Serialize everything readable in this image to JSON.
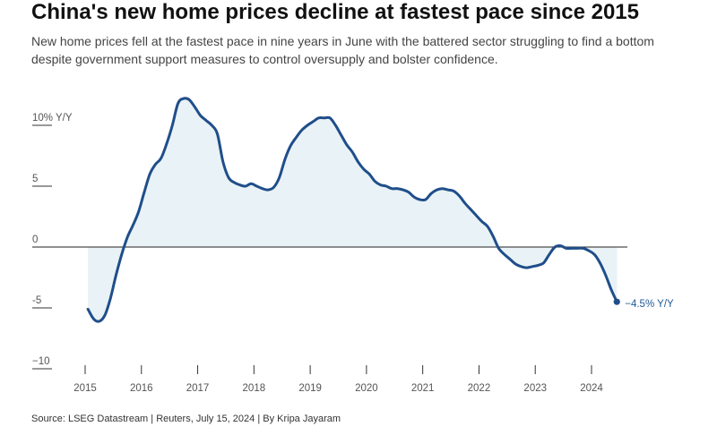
{
  "header": {
    "title": "China's new home prices decline at fastest pace since 2015",
    "subtitle": "New home prices fell at the fastest pace in nine years in June with the battered sector struggling to find a bottom despite government support measures to control oversupply and bolster confidence."
  },
  "footer": {
    "source": "Source: LSEG Datastream | Reuters, July 15, 2024 | By Kripa Jayaram"
  },
  "colors": {
    "line": "#1f4e8a",
    "area": "#e9f2f6",
    "axis": "#222222",
    "label": "#1f5a96"
  },
  "chart_data": {
    "type": "area",
    "ylim": [
      -10,
      12
    ],
    "xlim": [
      2015.0,
      2024.7
    ],
    "y_ticks": [
      {
        "value": 10,
        "label": "10% Y/Y"
      },
      {
        "value": 5,
        "label": "5"
      },
      {
        "value": 0,
        "label": "0"
      },
      {
        "value": -5,
        "label": "-5"
      },
      {
        "value": -10,
        "label": "−10"
      }
    ],
    "x_ticks": [
      {
        "value": 2015,
        "label": "2015"
      },
      {
        "value": 2016,
        "label": "2016"
      },
      {
        "value": 2017,
        "label": "2017"
      },
      {
        "value": 2018,
        "label": "2018"
      },
      {
        "value": 2019,
        "label": "2019"
      },
      {
        "value": 2020,
        "label": "2020"
      },
      {
        "value": 2021,
        "label": "2021"
      },
      {
        "value": 2022,
        "label": "2022"
      },
      {
        "value": 2023,
        "label": "2023"
      },
      {
        "value": 2024,
        "label": "2024"
      }
    ],
    "end_label": "−4.5% Y/Y",
    "series": [
      {
        "points": [
          [
            2015.05,
            -5.1
          ],
          [
            2015.15,
            -5.9
          ],
          [
            2015.25,
            -6.1
          ],
          [
            2015.35,
            -5.6
          ],
          [
            2015.45,
            -4.2
          ],
          [
            2015.55,
            -2.3
          ],
          [
            2015.65,
            -0.6
          ],
          [
            2015.75,
            0.8
          ],
          [
            2015.85,
            1.8
          ],
          [
            2015.95,
            2.9
          ],
          [
            2016.05,
            4.5
          ],
          [
            2016.15,
            6.0
          ],
          [
            2016.25,
            6.8
          ],
          [
            2016.35,
            7.3
          ],
          [
            2016.45,
            8.5
          ],
          [
            2016.55,
            10.0
          ],
          [
            2016.65,
            11.8
          ],
          [
            2016.75,
            12.2
          ],
          [
            2016.85,
            12.1
          ],
          [
            2016.95,
            11.5
          ],
          [
            2017.05,
            10.8
          ],
          [
            2017.15,
            10.4
          ],
          [
            2017.25,
            10.0
          ],
          [
            2017.35,
            9.3
          ],
          [
            2017.45,
            7.0
          ],
          [
            2017.55,
            5.7
          ],
          [
            2017.65,
            5.3
          ],
          [
            2017.75,
            5.1
          ],
          [
            2017.85,
            5.0
          ],
          [
            2017.95,
            5.2
          ],
          [
            2018.05,
            5.0
          ],
          [
            2018.15,
            4.8
          ],
          [
            2018.25,
            4.7
          ],
          [
            2018.35,
            4.9
          ],
          [
            2018.45,
            5.7
          ],
          [
            2018.55,
            7.2
          ],
          [
            2018.65,
            8.3
          ],
          [
            2018.75,
            9.0
          ],
          [
            2018.85,
            9.6
          ],
          [
            2018.95,
            10.0
          ],
          [
            2019.05,
            10.3
          ],
          [
            2019.15,
            10.6
          ],
          [
            2019.25,
            10.6
          ],
          [
            2019.35,
            10.6
          ],
          [
            2019.45,
            10.0
          ],
          [
            2019.55,
            9.2
          ],
          [
            2019.65,
            8.4
          ],
          [
            2019.75,
            7.8
          ],
          [
            2019.85,
            7.0
          ],
          [
            2019.95,
            6.4
          ],
          [
            2020.05,
            6.0
          ],
          [
            2020.15,
            5.4
          ],
          [
            2020.25,
            5.1
          ],
          [
            2020.35,
            5.0
          ],
          [
            2020.45,
            4.8
          ],
          [
            2020.55,
            4.8
          ],
          [
            2020.65,
            4.7
          ],
          [
            2020.75,
            4.5
          ],
          [
            2020.85,
            4.1
          ],
          [
            2020.95,
            3.9
          ],
          [
            2021.05,
            3.9
          ],
          [
            2021.15,
            4.4
          ],
          [
            2021.25,
            4.7
          ],
          [
            2021.35,
            4.8
          ],
          [
            2021.45,
            4.7
          ],
          [
            2021.55,
            4.6
          ],
          [
            2021.65,
            4.2
          ],
          [
            2021.75,
            3.6
          ],
          [
            2021.85,
            3.1
          ],
          [
            2021.95,
            2.6
          ],
          [
            2022.05,
            2.1
          ],
          [
            2022.15,
            1.7
          ],
          [
            2022.25,
            0.9
          ],
          [
            2022.35,
            -0.1
          ],
          [
            2022.45,
            -0.6
          ],
          [
            2022.55,
            -1.0
          ],
          [
            2022.65,
            -1.4
          ],
          [
            2022.75,
            -1.6
          ],
          [
            2022.85,
            -1.7
          ],
          [
            2022.95,
            -1.6
          ],
          [
            2023.05,
            -1.5
          ],
          [
            2023.15,
            -1.3
          ],
          [
            2023.25,
            -0.6
          ],
          [
            2023.35,
            0.0
          ],
          [
            2023.45,
            0.1
          ],
          [
            2023.55,
            -0.1
          ],
          [
            2023.65,
            -0.1
          ],
          [
            2023.75,
            -0.1
          ],
          [
            2023.85,
            -0.1
          ],
          [
            2023.95,
            -0.3
          ],
          [
            2024.05,
            -0.6
          ],
          [
            2024.15,
            -1.3
          ],
          [
            2024.25,
            -2.3
          ],
          [
            2024.35,
            -3.5
          ],
          [
            2024.45,
            -4.5
          ]
        ]
      }
    ]
  }
}
